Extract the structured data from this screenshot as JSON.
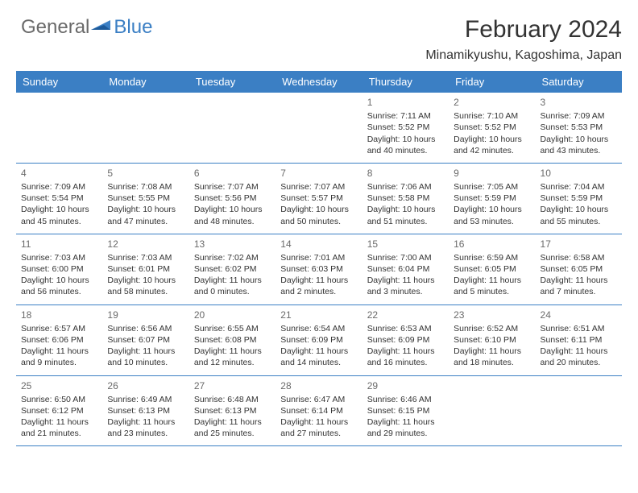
{
  "logo": {
    "text1": "General",
    "text2": "Blue"
  },
  "title": "February 2024",
  "location": "Minamikyushu, Kagoshima, Japan",
  "colors": {
    "header_bg": "#3b7fc4",
    "header_fg": "#ffffff",
    "text": "#333333",
    "daynum": "#6a6a6a"
  },
  "day_headers": [
    "Sunday",
    "Monday",
    "Tuesday",
    "Wednesday",
    "Thursday",
    "Friday",
    "Saturday"
  ],
  "weeks": [
    [
      null,
      null,
      null,
      null,
      {
        "n": "1",
        "sr": "7:11 AM",
        "ss": "5:52 PM",
        "dl": "10 hours and 40 minutes."
      },
      {
        "n": "2",
        "sr": "7:10 AM",
        "ss": "5:52 PM",
        "dl": "10 hours and 42 minutes."
      },
      {
        "n": "3",
        "sr": "7:09 AM",
        "ss": "5:53 PM",
        "dl": "10 hours and 43 minutes."
      }
    ],
    [
      {
        "n": "4",
        "sr": "7:09 AM",
        "ss": "5:54 PM",
        "dl": "10 hours and 45 minutes."
      },
      {
        "n": "5",
        "sr": "7:08 AM",
        "ss": "5:55 PM",
        "dl": "10 hours and 47 minutes."
      },
      {
        "n": "6",
        "sr": "7:07 AM",
        "ss": "5:56 PM",
        "dl": "10 hours and 48 minutes."
      },
      {
        "n": "7",
        "sr": "7:07 AM",
        "ss": "5:57 PM",
        "dl": "10 hours and 50 minutes."
      },
      {
        "n": "8",
        "sr": "7:06 AM",
        "ss": "5:58 PM",
        "dl": "10 hours and 51 minutes."
      },
      {
        "n": "9",
        "sr": "7:05 AM",
        "ss": "5:59 PM",
        "dl": "10 hours and 53 minutes."
      },
      {
        "n": "10",
        "sr": "7:04 AM",
        "ss": "5:59 PM",
        "dl": "10 hours and 55 minutes."
      }
    ],
    [
      {
        "n": "11",
        "sr": "7:03 AM",
        "ss": "6:00 PM",
        "dl": "10 hours and 56 minutes."
      },
      {
        "n": "12",
        "sr": "7:03 AM",
        "ss": "6:01 PM",
        "dl": "10 hours and 58 minutes."
      },
      {
        "n": "13",
        "sr": "7:02 AM",
        "ss": "6:02 PM",
        "dl": "11 hours and 0 minutes."
      },
      {
        "n": "14",
        "sr": "7:01 AM",
        "ss": "6:03 PM",
        "dl": "11 hours and 2 minutes."
      },
      {
        "n": "15",
        "sr": "7:00 AM",
        "ss": "6:04 PM",
        "dl": "11 hours and 3 minutes."
      },
      {
        "n": "16",
        "sr": "6:59 AM",
        "ss": "6:05 PM",
        "dl": "11 hours and 5 minutes."
      },
      {
        "n": "17",
        "sr": "6:58 AM",
        "ss": "6:05 PM",
        "dl": "11 hours and 7 minutes."
      }
    ],
    [
      {
        "n": "18",
        "sr": "6:57 AM",
        "ss": "6:06 PM",
        "dl": "11 hours and 9 minutes."
      },
      {
        "n": "19",
        "sr": "6:56 AM",
        "ss": "6:07 PM",
        "dl": "11 hours and 10 minutes."
      },
      {
        "n": "20",
        "sr": "6:55 AM",
        "ss": "6:08 PM",
        "dl": "11 hours and 12 minutes."
      },
      {
        "n": "21",
        "sr": "6:54 AM",
        "ss": "6:09 PM",
        "dl": "11 hours and 14 minutes."
      },
      {
        "n": "22",
        "sr": "6:53 AM",
        "ss": "6:09 PM",
        "dl": "11 hours and 16 minutes."
      },
      {
        "n": "23",
        "sr": "6:52 AM",
        "ss": "6:10 PM",
        "dl": "11 hours and 18 minutes."
      },
      {
        "n": "24",
        "sr": "6:51 AM",
        "ss": "6:11 PM",
        "dl": "11 hours and 20 minutes."
      }
    ],
    [
      {
        "n": "25",
        "sr": "6:50 AM",
        "ss": "6:12 PM",
        "dl": "11 hours and 21 minutes."
      },
      {
        "n": "26",
        "sr": "6:49 AM",
        "ss": "6:13 PM",
        "dl": "11 hours and 23 minutes."
      },
      {
        "n": "27",
        "sr": "6:48 AM",
        "ss": "6:13 PM",
        "dl": "11 hours and 25 minutes."
      },
      {
        "n": "28",
        "sr": "6:47 AM",
        "ss": "6:14 PM",
        "dl": "11 hours and 27 minutes."
      },
      {
        "n": "29",
        "sr": "6:46 AM",
        "ss": "6:15 PM",
        "dl": "11 hours and 29 minutes."
      },
      null,
      null
    ]
  ],
  "labels": {
    "sunrise": "Sunrise: ",
    "sunset": "Sunset: ",
    "daylight": "Daylight: "
  }
}
